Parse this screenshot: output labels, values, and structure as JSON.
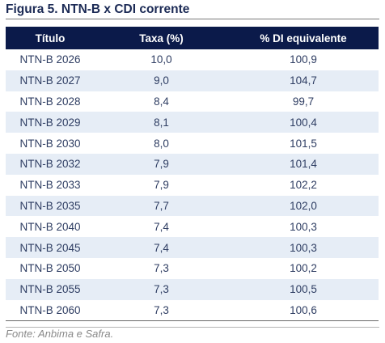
{
  "figure": {
    "title": "Figura 5. NTN-B x CDI corrente",
    "source": "Fonte: Anbima e Safra."
  },
  "table": {
    "headers": [
      "Título",
      "Taxa (%)",
      "% DI equivalente"
    ],
    "rows": [
      [
        "NTN-B 2026",
        "10,0",
        "100,9"
      ],
      [
        "NTN-B 2027",
        "9,0",
        "104,7"
      ],
      [
        "NTN-B 2028",
        "8,4",
        "99,7"
      ],
      [
        "NTN-B 2029",
        "8,1",
        "100,4"
      ],
      [
        "NTN-B 2030",
        "8,0",
        "101,5"
      ],
      [
        "NTN-B 2032",
        "7,9",
        "101,4"
      ],
      [
        "NTN-B 2033",
        "7,9",
        "102,2"
      ],
      [
        "NTN-B 2035",
        "7,7",
        "102,0"
      ],
      [
        "NTN-B 2040",
        "7,4",
        "100,3"
      ],
      [
        "NTN-B 2045",
        "7,4",
        "100,3"
      ],
      [
        "NTN-B 2050",
        "7,3",
        "100,2"
      ],
      [
        "NTN-B 2055",
        "7,3",
        "100,5"
      ],
      [
        "NTN-B 2060",
        "7,3",
        "100,6"
      ]
    ]
  },
  "chart_data": {
    "type": "table",
    "title": "Figura 5. NTN-B x CDI corrente",
    "columns": [
      "Título",
      "Taxa (%)",
      "% DI equivalente"
    ],
    "rows": [
      [
        "NTN-B 2026",
        10.0,
        100.9
      ],
      [
        "NTN-B 2027",
        9.0,
        104.7
      ],
      [
        "NTN-B 2028",
        8.4,
        99.7
      ],
      [
        "NTN-B 2029",
        8.1,
        100.4
      ],
      [
        "NTN-B 2030",
        8.0,
        101.5
      ],
      [
        "NTN-B 2032",
        7.9,
        101.4
      ],
      [
        "NTN-B 2033",
        7.9,
        102.2
      ],
      [
        "NTN-B 2035",
        7.7,
        102.0
      ],
      [
        "NTN-B 2040",
        7.4,
        100.3
      ],
      [
        "NTN-B 2045",
        7.4,
        100.3
      ],
      [
        "NTN-B 2050",
        7.3,
        100.2
      ],
      [
        "NTN-B 2055",
        7.3,
        100.5
      ],
      [
        "NTN-B 2060",
        7.3,
        100.6
      ]
    ]
  }
}
